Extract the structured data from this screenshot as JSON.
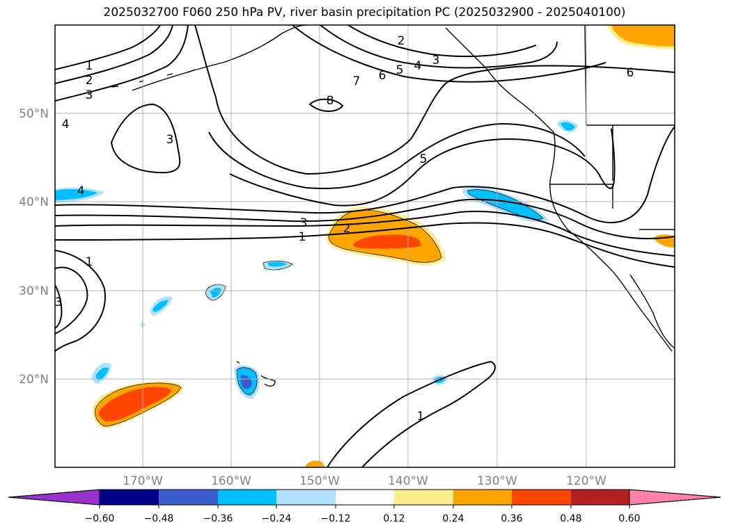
{
  "title": "2025032700 F060 250 hPa PV, river basin precipitation PC (2025032900 - 2025040100)",
  "map": {
    "lat_labels": [
      "50°N",
      "40°N",
      "30°N",
      "20°N"
    ],
    "lon_labels": [
      "170°W",
      "160°W",
      "150°W",
      "140°W",
      "130°W",
      "120°W"
    ],
    "pv_contour_labels": [
      "1",
      "2",
      "3",
      "2",
      "3",
      "4",
      "5",
      "6",
      "7",
      "8",
      "6",
      "3",
      "4",
      "5",
      "4",
      "3",
      "2",
      "1",
      "1",
      "3",
      "1"
    ],
    "colorbar": {
      "colors": [
        "#9932cc",
        "#00008b",
        "#3a5fcd",
        "#00bfff",
        "#b0e2ff",
        "#ffffff",
        "#ffec8b",
        "#ffa500",
        "#ff4500",
        "#b22222",
        "#ff82ab"
      ],
      "tick_labels": [
        "−0.60",
        "−0.48",
        "−0.36",
        "−0.24",
        "−0.12",
        "0.12",
        "0.24",
        "0.36",
        "0.48",
        "0.60"
      ]
    }
  }
}
